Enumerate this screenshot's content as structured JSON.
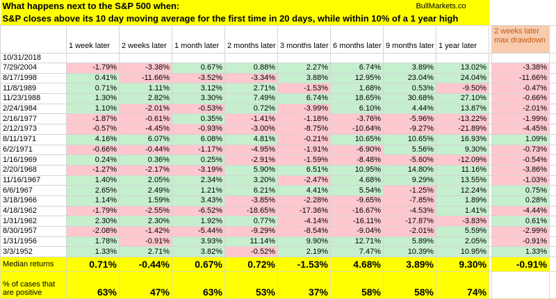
{
  "title": "What happens next to the S&P 500 when:",
  "source": "BullMarkets.co",
  "subtitle": "S&P closes above its 10 day moving average for the first time in 20 days, while within 10% of a 1 year high",
  "table": {
    "columns": [
      "1 week later",
      "2 weeks later",
      "1 month later",
      "2 months later",
      "3 months later",
      "6 months later",
      "9 months later",
      "1 year later"
    ],
    "extra_column": "2 weeks later max drawdown",
    "reference_date": "10/31/2018",
    "rows": [
      {
        "date": "7/29/2004",
        "values": [
          "-1.79%",
          "-3.38%",
          "0.67%",
          "0.88%",
          "2.27%",
          "6.74%",
          "3.89%",
          "13.02%"
        ],
        "drawdown": "-3.38%"
      },
      {
        "date": "8/17/1998",
        "values": [
          "0.41%",
          "-11.66%",
          "-3.52%",
          "-3.34%",
          "3.88%",
          "12.95%",
          "23.04%",
          "24.04%"
        ],
        "drawdown": "-11.66%"
      },
      {
        "date": "11/8/1989",
        "values": [
          "0.71%",
          "1.11%",
          "3.12%",
          "2.71%",
          "-1.53%",
          "1.68%",
          "0.53%",
          "-9.50%"
        ],
        "drawdown": "-0.47%"
      },
      {
        "date": "11/23/1988",
        "values": [
          "1.30%",
          "2.82%",
          "3.30%",
          "7.49%",
          "6.74%",
          "18.65%",
          "30.68%",
          "27.10%"
        ],
        "drawdown": "-0.66%"
      },
      {
        "date": "2/24/1984",
        "values": [
          "1.10%",
          "-2.01%",
          "-0.53%",
          "0.72%",
          "-3.99%",
          "6.10%",
          "4.44%",
          "13.87%"
        ],
        "drawdown": "-2.01%"
      },
      {
        "date": "2/16/1977",
        "values": [
          "-1.87%",
          "-0.61%",
          "0.35%",
          "-1.41%",
          "-1.18%",
          "-3.76%",
          "-5.96%",
          "-13.22%"
        ],
        "drawdown": "-1.99%"
      },
      {
        "date": "2/12/1973",
        "values": [
          "-0.57%",
          "-4.45%",
          "-0.93%",
          "-3.00%",
          "-8.75%",
          "-10.64%",
          "-9.27%",
          "-21.89%"
        ],
        "drawdown": "-4.45%"
      },
      {
        "date": "8/11/1971",
        "values": [
          "4.16%",
          "6.07%",
          "6.08%",
          "4.81%",
          "-0.21%",
          "10.65%",
          "10.65%",
          "16.93%"
        ],
        "drawdown": "1.09%"
      },
      {
        "date": "6/2/1971",
        "values": [
          "-0.66%",
          "-0.44%",
          "-1.17%",
          "-4.95%",
          "-1.91%",
          "-6.90%",
          "5.56%",
          "9.30%"
        ],
        "drawdown": "-0.73%"
      },
      {
        "date": "1/16/1969",
        "values": [
          "0.24%",
          "0.36%",
          "0.25%",
          "-2.91%",
          "-1.59%",
          "-8.48%",
          "-5.60%",
          "-12.09%"
        ],
        "drawdown": "-0.54%"
      },
      {
        "date": "2/20/1968",
        "values": [
          "-1.27%",
          "-2.17%",
          "-3.19%",
          "5.90%",
          "6.51%",
          "10.95%",
          "14.80%",
          "11.16%"
        ],
        "drawdown": "-3.86%"
      },
      {
        "date": "11/16/1967",
        "values": [
          "1.40%",
          "2.05%",
          "2.34%",
          "3.20%",
          "-2.47%",
          "4.68%",
          "9.29%",
          "13.55%"
        ],
        "drawdown": "-1.03%"
      },
      {
        "date": "6/6/1967",
        "values": [
          "2.65%",
          "2.49%",
          "1.21%",
          "6.21%",
          "4.41%",
          "5.54%",
          "-1.25%",
          "12.24%"
        ],
        "drawdown": "0.75%"
      },
      {
        "date": "3/18/1966",
        "values": [
          "1.14%",
          "1.59%",
          "3.43%",
          "-3.85%",
          "-2.28%",
          "-9.65%",
          "-7.85%",
          "1.89%"
        ],
        "drawdown": "0.28%"
      },
      {
        "date": "4/18/1962",
        "values": [
          "-1.79%",
          "-2.55%",
          "-6.52%",
          "-18.65%",
          "-17.36%",
          "-16.67%",
          "-4.53%",
          "1.41%"
        ],
        "drawdown": "-4.44%"
      },
      {
        "date": "1/31/1962",
        "values": [
          "2.30%",
          "2.30%",
          "1.92%",
          "0.77%",
          "-4.14%",
          "-16.11%",
          "-17.87%",
          "-3.83%"
        ],
        "drawdown": "0.61%"
      },
      {
        "date": "8/30/1957",
        "values": [
          "-2.08%",
          "-1.42%",
          "-5.44%",
          "-9.29%",
          "-8.54%",
          "-9.04%",
          "-2.01%",
          "5.59%"
        ],
        "drawdown": "-2.99%"
      },
      {
        "date": "1/31/1956",
        "values": [
          "1.78%",
          "-0.91%",
          "3.93%",
          "11.14%",
          "9.90%",
          "12.71%",
          "5.89%",
          "2.05%"
        ],
        "drawdown": "-0.91%"
      },
      {
        "date": "3/3/1952",
        "values": [
          "1.33%",
          "2.71%",
          "3.82%",
          "-0.52%",
          "2.19%",
          "7.47%",
          "10.39%",
          "10.95%"
        ],
        "drawdown": "1.33%"
      }
    ],
    "median": {
      "label": "Median returns",
      "values": [
        "0.71%",
        "-0.44%",
        "0.67%",
        "0.72%",
        "-1.53%",
        "4.68%",
        "3.89%",
        "9.30%"
      ],
      "drawdown": "-0.91%"
    },
    "positive": {
      "label": "% of cases that are positive",
      "values": [
        "63%",
        "47%",
        "63%",
        "53%",
        "37%",
        "58%",
        "58%",
        "74%"
      ]
    }
  }
}
